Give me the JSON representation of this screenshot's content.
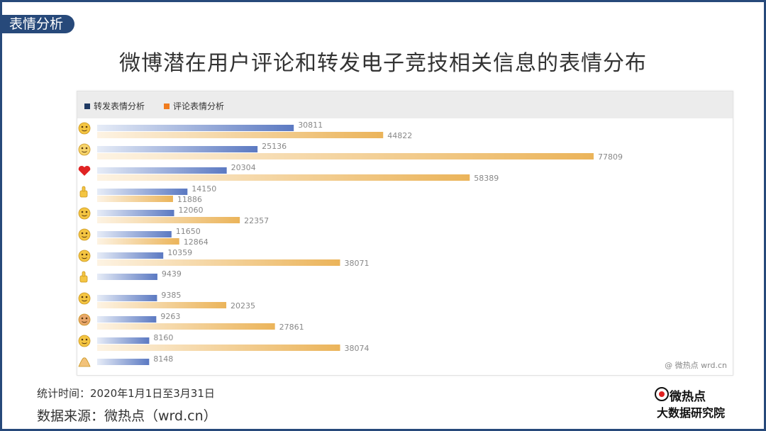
{
  "section_tag": "表情分析",
  "page_title": "微博潜在用户评论和转发电子竞技相关信息的表情分布",
  "legend": {
    "forward": "转发表情分析",
    "comment": "评论表情分析"
  },
  "colors": {
    "frame": "#27497a",
    "forward": "#5b79c2",
    "forward_light": "#e6ecf7",
    "comment": "#ebb45a",
    "comment_light": "#fdf3e3",
    "forward_legend": "#1f3a63",
    "comment_legend": "#f07c1f"
  },
  "watermark": "@ 微热点  wrd.cn",
  "footer": {
    "stat_time": "统计时间：2020年1月1日至3月31日",
    "source": "数据来源：微热点（wrd.cn）"
  },
  "logo": {
    "top": "微热点",
    "bottom": "大数据研究院"
  },
  "chart_data": {
    "type": "bar",
    "orientation": "horizontal",
    "categories": [
      "doge-emoji",
      "dog-face-emoji",
      "red-heart-emoji",
      "thumbs-up-emoji",
      "crying-emoji",
      "laugh-emoji",
      "kiss-emoji",
      "like-emoji",
      "shocked-emoji",
      "crazy-emoji",
      "laugh-cry-emoji",
      "prayer-hands-emoji"
    ],
    "series": [
      {
        "name": "转发表情分析",
        "values": [
          30811,
          25136,
          20304,
          14150,
          12060,
          11650,
          10359,
          9439,
          9385,
          9263,
          8160,
          8148
        ]
      },
      {
        "name": "评论表情分析",
        "values": [
          44822,
          77809,
          58389,
          11886,
          22357,
          12864,
          38071,
          null,
          20235,
          27861,
          38074,
          null
        ]
      }
    ],
    "legend_position": "top-left",
    "grid": false
  }
}
